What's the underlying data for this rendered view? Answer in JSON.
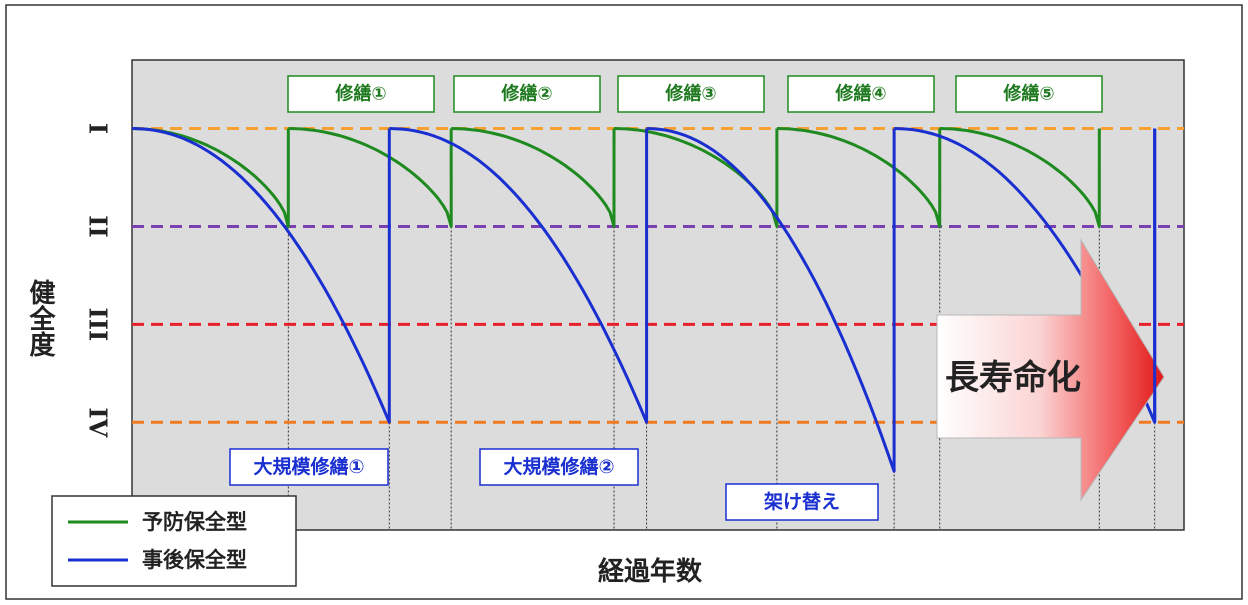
{
  "chart_data": {
    "type": "line",
    "title": "",
    "xlabel": "経過年数",
    "ylabel": "健全度",
    "y_levels": [
      {
        "label": "I",
        "value": 1,
        "color": "#f5a030"
      },
      {
        "label": "II",
        "value": 2,
        "color": "#7a3fb0"
      },
      {
        "label": "III",
        "value": 3,
        "color": "#e8202a"
      },
      {
        "label": "IV",
        "value": 4,
        "color": "#f07a20"
      }
    ],
    "grid": false,
    "legend_position": "bottom-left",
    "series": [
      {
        "name": "予防保全型",
        "color": "#1f8a1f",
        "segments": [
          {
            "x0": 0,
            "x1": 4.8,
            "y_end": 2
          },
          {
            "x0": 4.8,
            "x1": 9.8,
            "y_end": 2
          },
          {
            "x0": 9.8,
            "x1": 14.8,
            "y_end": 2
          },
          {
            "x0": 14.8,
            "x1": 19.8,
            "y_end": 2
          },
          {
            "x0": 19.8,
            "x1": 24.8,
            "y_end": 2
          },
          {
            "x0": 24.8,
            "x1": 29.7,
            "y_end": 2
          }
        ]
      },
      {
        "name": "事後保全型",
        "color": "#1a2fd0",
        "segments": [
          {
            "x0": 0,
            "x1": 7.9,
            "y_end": 4
          },
          {
            "x0": 7.9,
            "x1": 15.8,
            "y_end": 4
          },
          {
            "x0": 15.8,
            "x1": 23.4,
            "y_end": 4.5
          },
          {
            "x0": 23.4,
            "x1": 31.4,
            "y_end": 4
          }
        ]
      }
    ],
    "x_range": [
      0,
      32.3
    ],
    "y_range": [
      0.3,
      5.1
    ]
  },
  "annotations": {
    "preventive_repairs": [
      "修繕①",
      "修繕②",
      "修繕③",
      "修繕④",
      "修繕⑤"
    ],
    "major_repairs": [
      "大規模修繕①",
      "大規模修繕②",
      "架け替え"
    ],
    "arrow_label": "長寿命化"
  },
  "legend": {
    "items": [
      {
        "label": "予防保全型",
        "color": "#1f8a1f"
      },
      {
        "label": "事後保全型",
        "color": "#1a2fd0"
      }
    ]
  }
}
